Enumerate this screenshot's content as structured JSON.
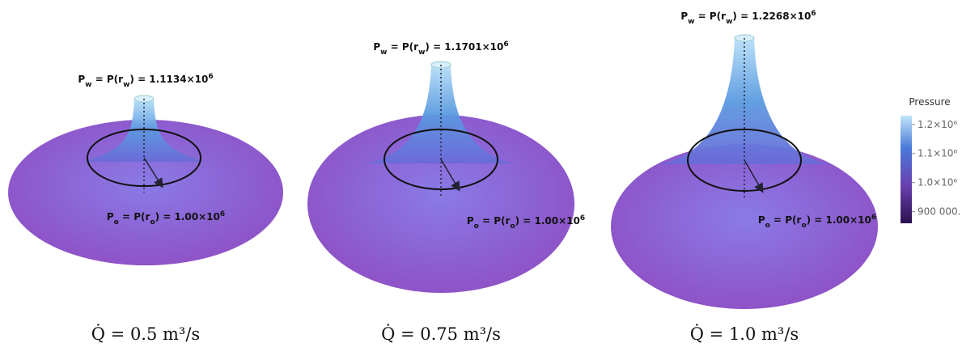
{
  "panels": [
    {
      "well_label": [
        {
          "text": "P"
        },
        {
          "text": "w",
          "shift": "sub"
        },
        {
          "text": " = P(r"
        },
        {
          "text": "w",
          "shift": "sub"
        },
        {
          "text": ") = 1.1134×10"
        },
        {
          "text": "6",
          "shift": "super"
        }
      ],
      "outer_label": [
        {
          "text": "P"
        },
        {
          "text": "o",
          "shift": "sub"
        },
        {
          "text": " = P(r"
        },
        {
          "text": "o",
          "shift": "sub"
        },
        {
          "text": ") = 1.00×10"
        },
        {
          "text": "6",
          "shift": "super"
        }
      ],
      "flow": "Q̇ = 0.5 m³/s"
    },
    {
      "well_label": [
        {
          "text": "P"
        },
        {
          "text": "w",
          "shift": "sub"
        },
        {
          "text": " = P(r"
        },
        {
          "text": "w",
          "shift": "sub"
        },
        {
          "text": ") = 1.1701×10"
        },
        {
          "text": "6",
          "shift": "super"
        }
      ],
      "outer_label": [
        {
          "text": "P"
        },
        {
          "text": "o",
          "shift": "sub"
        },
        {
          "text": " = P(r"
        },
        {
          "text": "o",
          "shift": "sub"
        },
        {
          "text": ") = 1.00×10"
        },
        {
          "text": "6",
          "shift": "super"
        }
      ],
      "flow": "Q̇ = 0.75 m³/s"
    },
    {
      "well_label": [
        {
          "text": "P"
        },
        {
          "text": "w",
          "shift": "sub"
        },
        {
          "text": " = P(r"
        },
        {
          "text": "w",
          "shift": "sub"
        },
        {
          "text": ") = 1.2268×10"
        },
        {
          "text": "6",
          "shift": "super"
        }
      ],
      "outer_label": [
        {
          "text": "P"
        },
        {
          "text": "o",
          "shift": "sub"
        },
        {
          "text": " = P(r"
        },
        {
          "text": "o",
          "shift": "sub"
        },
        {
          "text": ") = 1.00×10"
        },
        {
          "text": "6",
          "shift": "super"
        }
      ],
      "flow": "Q̇ = 1.0 m³/s"
    }
  ],
  "colorbar": {
    "title": "Pressure",
    "lim": [
      860000,
      1230000
    ],
    "ticks": [
      {
        "value": 1200000,
        "label": "1.2×10⁶"
      },
      {
        "value": 1100000,
        "label": "1.1×10⁶"
      },
      {
        "value": 1000000,
        "label": "1.0×10⁶"
      },
      {
        "value": 900000,
        "label": "900 000."
      }
    ]
  }
}
